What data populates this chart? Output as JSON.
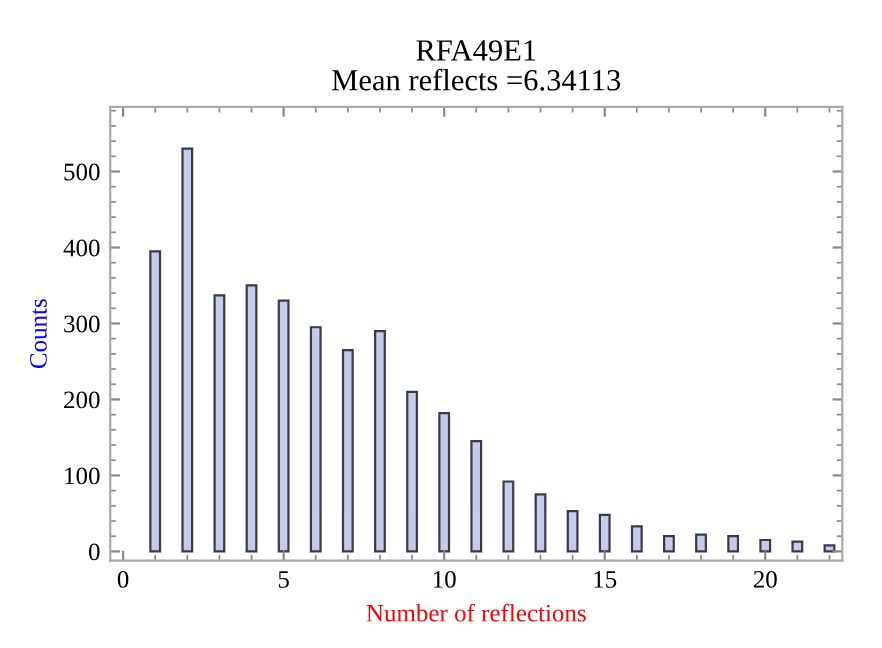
{
  "chart_data": {
    "type": "bar",
    "title": "RFA49E1\nMean reflects =6.34113",
    "xlabel": "Number of reflections",
    "ylabel": "Counts",
    "x": [
      1,
      2,
      3,
      4,
      5,
      6,
      7,
      8,
      9,
      10,
      11,
      12,
      13,
      14,
      15,
      16,
      17,
      18,
      19,
      20,
      21,
      22
    ],
    "values": [
      395,
      530,
      337,
      350,
      330,
      295,
      265,
      290,
      210,
      182,
      145,
      92,
      75,
      53,
      48,
      33,
      20,
      22,
      20,
      15,
      13,
      8
    ],
    "color": "#c5cbec",
    "xlim": [
      -0.4,
      22.4
    ],
    "xticks": [
      0,
      5,
      10,
      15,
      20
    ],
    "ylim": [
      -12,
      585
    ],
    "yticks": [
      0,
      100,
      200,
      300,
      400,
      500
    ],
    "grid": false,
    "legend": false
  }
}
